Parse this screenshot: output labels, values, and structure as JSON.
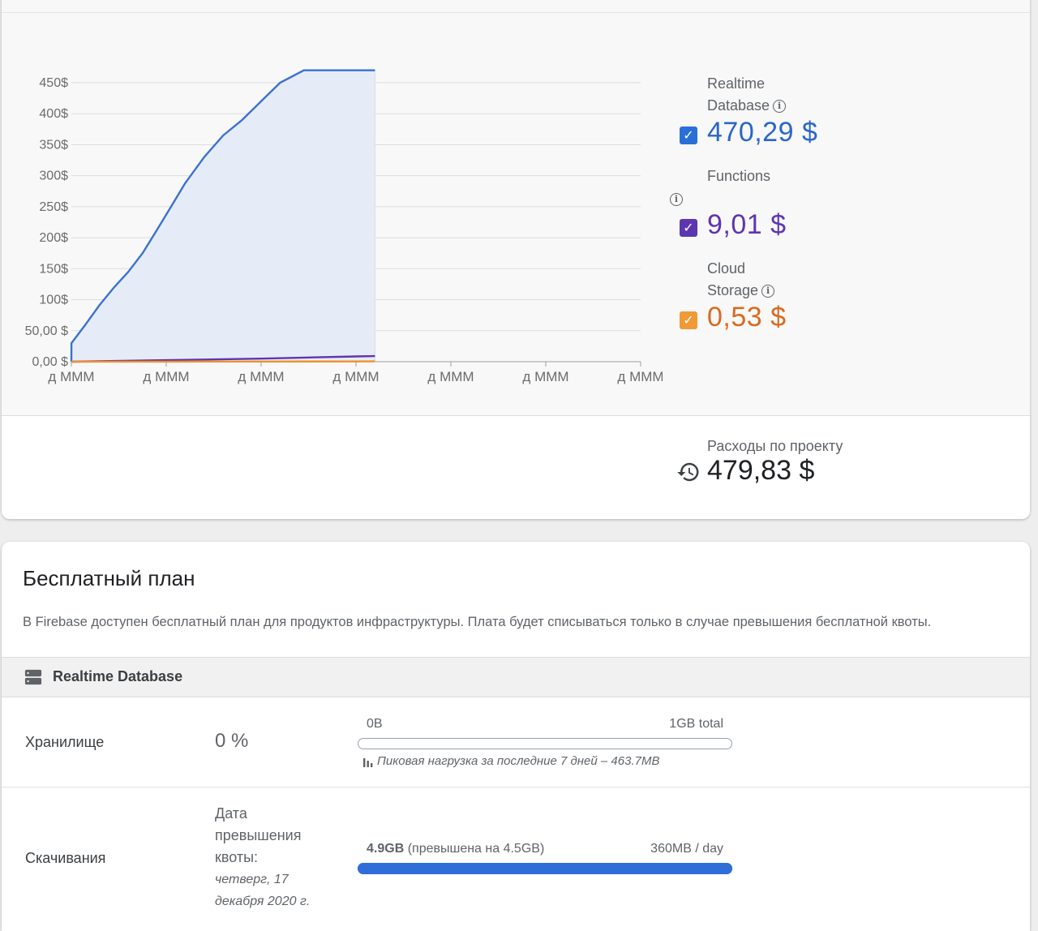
{
  "costs": {
    "legend": [
      {
        "label_line1": "Realtime",
        "label_line2": "Database",
        "value": "470,29 $",
        "color": "#2a66c9",
        "checkbox_color": "#2a6fd8",
        "checked": true
      },
      {
        "label_line1": "Functions",
        "label_line2": "",
        "value": "9,01 $",
        "color": "#5e35b1",
        "checkbox_color": "#5e35b1",
        "checked": true
      },
      {
        "label_line1": "Cloud",
        "label_line2": "Storage",
        "value": "0,53 $",
        "color": "#d96a1f",
        "checkbox_color": "#f09a37",
        "checked": true
      }
    ],
    "info_icon": "info-icon",
    "history_icon": "history-icon",
    "total_label": "Расходы по проекту",
    "total_value": "479,83 $"
  },
  "chart_data": {
    "type": "area",
    "categories": [
      "д МММ",
      "д МММ",
      "д МММ",
      "д МММ",
      "д МММ",
      "д МММ",
      "д МММ"
    ],
    "y_ticks": [
      "0,00 $",
      "50,00 $",
      "100$",
      "150$",
      "200$",
      "250$",
      "300$",
      "350$",
      "400$",
      "450$"
    ],
    "ylim": [
      0,
      450
    ],
    "x_range": [
      0,
      6
    ],
    "grid": true,
    "series": [
      {
        "name": "Realtime Database",
        "color": "#3a72cf",
        "fill": "#e6ecf7",
        "x": [
          0,
          0.001,
          0.15,
          0.3,
          0.45,
          0.6,
          0.75,
          0.9,
          1.05,
          1.2,
          1.4,
          1.6,
          1.8,
          2.0,
          2.2,
          2.45,
          2.7,
          2.95,
          3.15,
          3.2
        ],
        "y": [
          0,
          30,
          60,
          92,
          120,
          145,
          175,
          212,
          250,
          288,
          330,
          365,
          390,
          420,
          450,
          470,
          470,
          470,
          470,
          470
        ]
      },
      {
        "name": "Functions",
        "color": "#5e35b1",
        "x": [
          0,
          1,
          2,
          3,
          3.2
        ],
        "y": [
          0,
          2.5,
          5,
          8.5,
          9
        ]
      },
      {
        "name": "Cloud Storage",
        "color": "#f0912a",
        "x": [
          0,
          1,
          2,
          3,
          3.2
        ],
        "y": [
          0,
          0.15,
          0.3,
          0.45,
          0.53
        ]
      }
    ]
  },
  "free_plan": {
    "title": "Бесплатный план",
    "description": "В Firebase доступен бесплатный план для продуктов инфраструктуры. Плата будет списываться только в случае превышения бесплатной квоты.",
    "section_icon": "database-icon",
    "section_title": "Realtime Database",
    "storage": {
      "label": "Хранилище",
      "percent": "0 %",
      "bar_left": "0B",
      "bar_right": "1GB total",
      "fill_fraction": 0,
      "peak_icon": "bar-chart-icon",
      "peak_text": "Пиковая нагрузка за последние 7 дней – 463.7MB"
    },
    "downloads": {
      "label": "Скачивания",
      "quota_line1": "Дата",
      "quota_line2": "превышения",
      "quota_line3": "квоты:",
      "date_line1": "четверг, 17",
      "date_line2": "декабря 2020 г.",
      "bar_left_bold": "4.9GB",
      "bar_left_rest": " (превышена на 4.5GB)",
      "bar_right": "360MB / day",
      "fill_fraction": 1
    }
  }
}
